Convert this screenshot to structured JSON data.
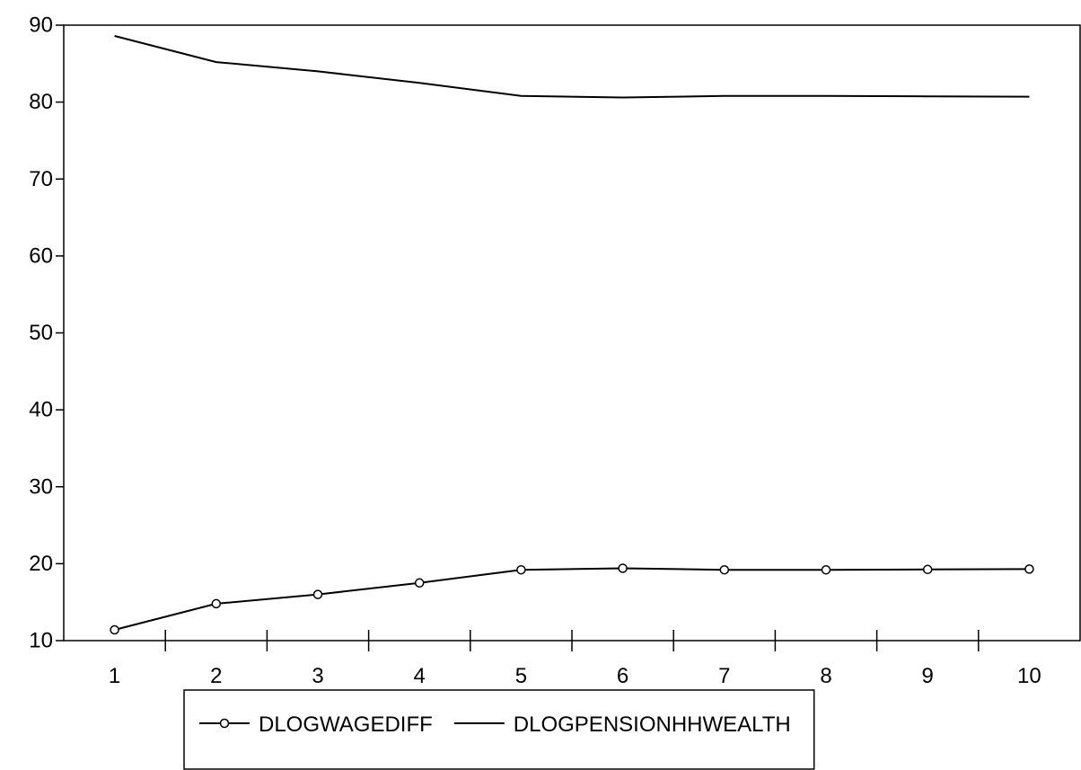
{
  "chart_data": {
    "type": "line",
    "title": "",
    "xlabel": "",
    "ylabel": "",
    "x": [
      1,
      2,
      3,
      4,
      5,
      6,
      7,
      8,
      9,
      10
    ],
    "ylim": [
      10,
      90
    ],
    "yticks": [
      10,
      20,
      30,
      40,
      50,
      60,
      70,
      80,
      90
    ],
    "grid": false,
    "legend_position": "bottom",
    "series": [
      {
        "name": "DLOGWAGEDIFF",
        "marker": "circle",
        "color": "#000000",
        "values": [
          11.4,
          14.8,
          16.0,
          17.5,
          19.2,
          19.4,
          19.2,
          19.2,
          19.25,
          19.3
        ]
      },
      {
        "name": "DLOGPENSIONHHWEALTH",
        "marker": "none",
        "color": "#000000",
        "values": [
          88.6,
          85.2,
          84.0,
          82.5,
          80.8,
          80.6,
          80.8,
          80.8,
          80.75,
          80.7
        ]
      }
    ]
  }
}
